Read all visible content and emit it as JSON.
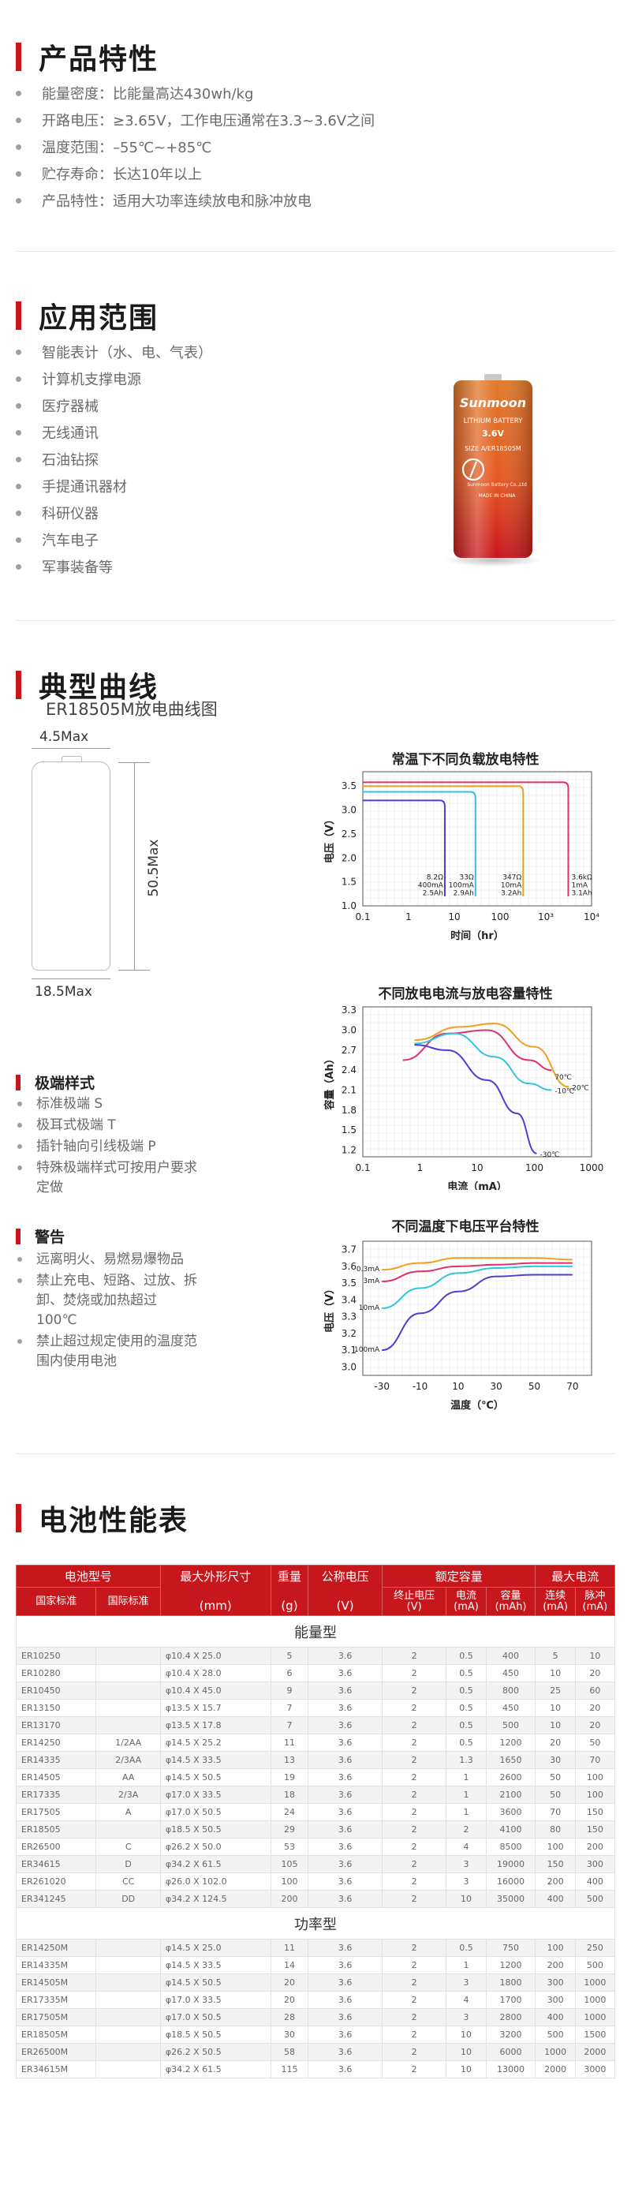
{
  "sections": {
    "features": {
      "title": "产品特性",
      "items": [
        "能量密度：比能量高达430wh/kg",
        "开路电压：≥3.65V，工作电压通常在3.3~3.6V之间",
        "温度范围：–55℃~+85℃",
        "贮存寿命：长达10年以上",
        "产品特性：适用大功率连续放电和脉冲放电"
      ]
    },
    "applications": {
      "title": "应用范围",
      "items": [
        "智能表计（水、电、气表）",
        "计算机支撑电源",
        "医疗器械",
        "无线通讯",
        "石油钻探",
        "手提通讯器材",
        "科研仪器",
        "汽车电子",
        "军事装备等"
      ]
    },
    "curves": {
      "title": "典型曲线",
      "subtitle": "ER18505M放电曲线图",
      "dims": {
        "top": "4.5Max",
        "height": "50.5Max",
        "width": "18.5Max"
      }
    },
    "terminals": {
      "title": "极端样式",
      "items": [
        "标准极端 S",
        "极耳式极端 T",
        "插针轴向引线极端 P",
        "特殊极端样式可按用户要求定做"
      ]
    },
    "warnings": {
      "title": "警告",
      "items": [
        "远离明火、易燃易爆物品",
        "禁止充电、短路、过放、拆卸、焚烧或加热超过100℃",
        "禁止超过规定使用的温度范围内使用电池"
      ]
    },
    "table": {
      "title": "电池性能表"
    }
  },
  "battery_label": {
    "brand": "Sunmoon",
    "line1": "LITHIUM BATTERY",
    "voltage": "3.6V",
    "model": "SIZE A/ER18505M",
    "footer": "Sunmoon Battery Co.,Ltd",
    "made": "MADE IN CHINA",
    "colors": {
      "top": "#e07a2a",
      "bottom": "#c8161d"
    }
  },
  "chart_data": [
    {
      "type": "line",
      "title": "常温下不同负载放电特性",
      "xlabel": "时间（hr）",
      "ylabel": "电压（V）",
      "xscale": "log",
      "xlim": [
        0.1,
        10000
      ],
      "ylim": [
        1.0,
        3.8
      ],
      "xticks": [
        "0.1",
        "1",
        "10",
        "100",
        "10³",
        "10⁴"
      ],
      "yticks": [
        "1.0",
        "1.5",
        "2.0",
        "2.5",
        "3.0",
        "3.5"
      ],
      "series": [
        {
          "name": "8.2Ω 400mA 2.5Ah",
          "color": "#4b3fd1",
          "plateau": 3.2,
          "end": 6.2
        },
        {
          "name": "33Ω 100mA 2.9Ah",
          "color": "#33c4e0",
          "plateau": 3.38,
          "end": 29
        },
        {
          "name": "347Ω 10mA 3.2Ah",
          "color": "#f0a020",
          "plateau": 3.5,
          "end": 320
        },
        {
          "name": "3.6kΩ 1mA 3.1Ah",
          "color": "#e0306a",
          "plateau": 3.58,
          "end": 3100
        }
      ]
    },
    {
      "type": "line",
      "title": "不同放电电流与放电容量特性",
      "xlabel": "电流（mA）",
      "ylabel": "容量（Ah）",
      "xscale": "log",
      "xlim": [
        0.1,
        1000
      ],
      "ylim": [
        1.1,
        3.35
      ],
      "xticks": [
        "0.1",
        "1",
        "10",
        "100",
        "1000"
      ],
      "yticks": [
        "1.2",
        "1.5",
        "1.8",
        "2.1",
        "2.4",
        "2.7",
        "3.0",
        "3.3"
      ],
      "series": [
        {
          "name": "20℃",
          "color": "#f0a020",
          "points": [
            [
              0.8,
              2.85
            ],
            [
              5,
              3.05
            ],
            [
              20,
              3.1
            ],
            [
              100,
              2.75
            ],
            [
              400,
              2.15
            ]
          ]
        },
        {
          "name": "70℃",
          "color": "#e0306a",
          "points": [
            [
              0.5,
              2.55
            ],
            [
              3,
              2.95
            ],
            [
              15,
              3.0
            ],
            [
              80,
              2.55
            ],
            [
              200,
              2.4
            ]
          ]
        },
        {
          "name": "-10℃",
          "color": "#33c4e0",
          "points": [
            [
              0.8,
              2.8
            ],
            [
              4,
              2.95
            ],
            [
              20,
              2.6
            ],
            [
              80,
              2.2
            ],
            [
              200,
              2.1
            ]
          ]
        },
        {
          "name": "-30℃",
          "color": "#4b3fd1",
          "points": [
            [
              0.8,
              2.78
            ],
            [
              3,
              2.7
            ],
            [
              15,
              2.25
            ],
            [
              50,
              1.75
            ],
            [
              110,
              1.15
            ]
          ]
        }
      ]
    },
    {
      "type": "line",
      "title": "不同温度下电压平台特性",
      "xlabel": "温度（℃）",
      "ylabel": "电压（V）",
      "xlim": [
        -40,
        80
      ],
      "ylim": [
        2.95,
        3.75
      ],
      "xticks": [
        "-30",
        "-10",
        "10",
        "30",
        "50",
        "70"
      ],
      "yticks": [
        "3.0",
        "3.1",
        "3.2",
        "3.3",
        "3.4",
        "3.5",
        "3.6",
        "3.7"
      ],
      "series": [
        {
          "name": "0.3mA",
          "color": "#f0a020",
          "points": [
            [
              -30,
              3.58
            ],
            [
              -10,
              3.62
            ],
            [
              10,
              3.65
            ],
            [
              30,
              3.65
            ],
            [
              50,
              3.65
            ],
            [
              70,
              3.64
            ]
          ]
        },
        {
          "name": "3mA",
          "color": "#e0306a",
          "points": [
            [
              -30,
              3.51
            ],
            [
              -10,
              3.57
            ],
            [
              10,
              3.6
            ],
            [
              30,
              3.61
            ],
            [
              50,
              3.62
            ],
            [
              70,
              3.62
            ]
          ]
        },
        {
          "name": "10mA",
          "color": "#33c4e0",
          "points": [
            [
              -30,
              3.35
            ],
            [
              -10,
              3.47
            ],
            [
              10,
              3.56
            ],
            [
              30,
              3.59
            ],
            [
              50,
              3.6
            ],
            [
              70,
              3.6
            ]
          ]
        },
        {
          "name": "100mA",
          "color": "#4b3fd1",
          "points": [
            [
              -30,
              3.1
            ],
            [
              -10,
              3.32
            ],
            [
              10,
              3.45
            ],
            [
              30,
              3.54
            ],
            [
              50,
              3.55
            ],
            [
              70,
              3.55
            ]
          ]
        }
      ]
    }
  ],
  "perf_table": {
    "headers": {
      "model": "电池型号",
      "size": "最大外形尺寸",
      "weight": "重量",
      "voltage": "公称电压",
      "capacity": "额定容量",
      "maxcur": "最大电流",
      "national": "国家标准",
      "intl": "国际标准",
      "size_unit": "(mm)",
      "weight_unit": "(g)",
      "voltage_unit": "(V)",
      "cutoff": "终止电压\n(V)",
      "current": "电流\n(mA)",
      "cap": "容量\n(mAh)",
      "cont": "连续\n(mA)",
      "pulse": "脉冲\n(mA)"
    },
    "groups": [
      {
        "name": "能量型",
        "rows": [
          [
            "ER10250",
            "",
            "φ10.4 X 25.0",
            "5",
            "3.6",
            "2",
            "0.5",
            "400",
            "5",
            "10"
          ],
          [
            "ER10280",
            "",
            "φ10.4 X 28.0",
            "6",
            "3.6",
            "2",
            "0.5",
            "450",
            "10",
            "20"
          ],
          [
            "ER10450",
            "",
            "φ10.4 X 45.0",
            "9",
            "3.6",
            "2",
            "0.5",
            "800",
            "25",
            "60"
          ],
          [
            "ER13150",
            "",
            "φ13.5 X 15.7",
            "7",
            "3.6",
            "2",
            "0.5",
            "450",
            "10",
            "20"
          ],
          [
            "ER13170",
            "",
            "φ13.5 X 17.8",
            "7",
            "3.6",
            "2",
            "0.5",
            "500",
            "10",
            "20"
          ],
          [
            "ER14250",
            "1/2AA",
            "φ14.5 X 25.2",
            "11",
            "3.6",
            "2",
            "0.5",
            "1200",
            "20",
            "50"
          ],
          [
            "ER14335",
            "2/3AA",
            "φ14.5 X 33.5",
            "13",
            "3.6",
            "2",
            "1.3",
            "1650",
            "30",
            "70"
          ],
          [
            "ER14505",
            "AA",
            "φ14.5 X 50.5",
            "19",
            "3.6",
            "2",
            "1",
            "2600",
            "50",
            "100"
          ],
          [
            "ER17335",
            "2/3A",
            "φ17.0 X 33.5",
            "18",
            "3.6",
            "2",
            "1",
            "2100",
            "50",
            "100"
          ],
          [
            "ER17505",
            "A",
            "φ17.0 X 50.5",
            "24",
            "3.6",
            "2",
            "1",
            "3600",
            "70",
            "150"
          ],
          [
            "ER18505",
            "",
            "φ18.5 X 50.5",
            "29",
            "3.6",
            "2",
            "2",
            "4100",
            "80",
            "150"
          ],
          [
            "ER26500",
            "C",
            "φ26.2 X 50.0",
            "53",
            "3.6",
            "2",
            "4",
            "8500",
            "100",
            "200"
          ],
          [
            "ER34615",
            "D",
            "φ34.2 X 61.5",
            "105",
            "3.6",
            "2",
            "3",
            "19000",
            "150",
            "300"
          ],
          [
            "ER261020",
            "CC",
            "φ26.0 X 102.0",
            "100",
            "3.6",
            "2",
            "3",
            "16000",
            "200",
            "400"
          ],
          [
            "ER341245",
            "DD",
            "φ34.2 X 124.5",
            "200",
            "3.6",
            "2",
            "10",
            "35000",
            "400",
            "500"
          ]
        ]
      },
      {
        "name": "功率型",
        "rows": [
          [
            "ER14250M",
            "",
            "φ14.5 X 25.0",
            "11",
            "3.6",
            "2",
            "0.5",
            "750",
            "100",
            "250"
          ],
          [
            "ER14335M",
            "",
            "φ14.5 X 33.5",
            "14",
            "3.6",
            "2",
            "1",
            "1200",
            "200",
            "500"
          ],
          [
            "ER14505M",
            "",
            "φ14.5 X 50.5",
            "20",
            "3.6",
            "2",
            "3",
            "1800",
            "300",
            "1000"
          ],
          [
            "ER17335M",
            "",
            "φ17.0 X 33.5",
            "20",
            "3.6",
            "2",
            "4",
            "1700",
            "300",
            "1000"
          ],
          [
            "ER17505M",
            "",
            "φ17.0 X 50.5",
            "28",
            "3.6",
            "2",
            "3",
            "2800",
            "400",
            "1000"
          ],
          [
            "ER18505M",
            "",
            "φ18.5 X 50.5",
            "30",
            "3.6",
            "2",
            "10",
            "3200",
            "500",
            "1500"
          ],
          [
            "ER26500M",
            "",
            "φ26.2 X 50.5",
            "58",
            "3.6",
            "2",
            "10",
            "6000",
            "1000",
            "2000"
          ],
          [
            "ER34615M",
            "",
            "φ34.2 X 61.5",
            "115",
            "3.6",
            "2",
            "10",
            "13000",
            "2000",
            "3000"
          ]
        ]
      }
    ]
  }
}
